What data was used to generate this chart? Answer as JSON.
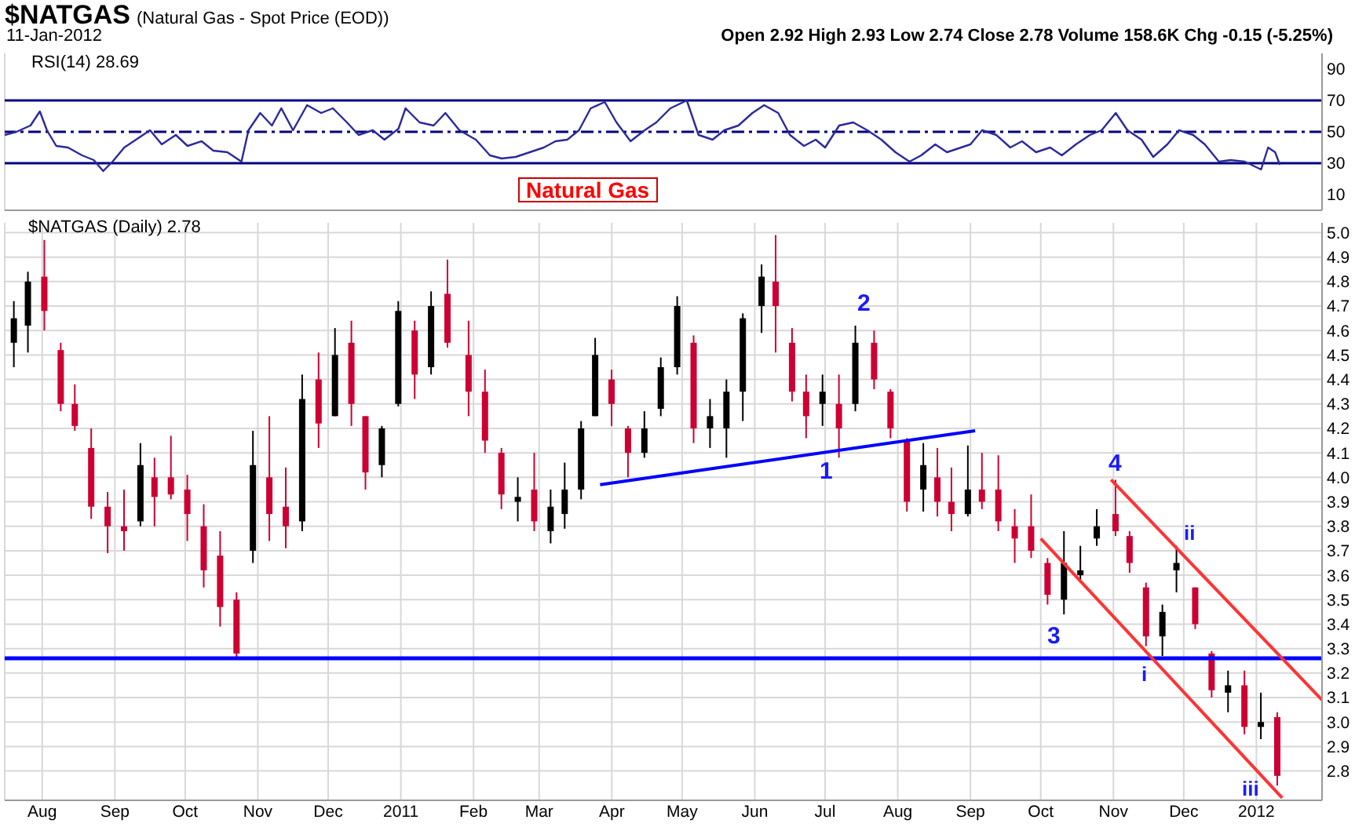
{
  "chart_data": [
    {
      "type": "line",
      "title": "$NATGAS",
      "subtitle": "(Natural Gas - Spot Price (EOD))",
      "annotations": [
        "11-Jan-2012",
        "Open 2.92 High 2.93 Low 2.74 Close 2.78 Volume 158.6K Chg -0.15 (-5.25%)",
        "RSI(14) 28.69",
        "Natural Gas"
      ],
      "x": [
        "2010-07-16",
        "2010-07-21",
        "2010-07-27",
        "2010-07-31",
        "2010-08-03",
        "2010-08-07",
        "2010-08-12",
        "2010-08-18",
        "2010-08-23",
        "2010-08-27",
        "2010-08-31",
        "2010-09-05",
        "2010-09-10",
        "2010-09-16",
        "2010-09-21",
        "2010-09-27",
        "2010-10-02",
        "2010-10-08",
        "2010-10-13",
        "2010-10-19",
        "2010-10-25",
        "2010-10-28",
        "2010-11-02",
        "2010-11-07",
        "2010-11-11",
        "2010-11-16",
        "2010-11-22",
        "2010-11-28",
        "2010-12-03",
        "2010-12-09",
        "2010-12-14",
        "2010-12-20",
        "2010-12-25",
        "2010-12-31",
        "2011-01-03",
        "2011-01-09",
        "2011-01-15",
        "2011-01-20",
        "2011-01-26",
        "2011-02-02",
        "2011-02-08",
        "2011-02-13",
        "2011-02-19",
        "2011-02-25",
        "2011-03-03",
        "2011-03-08",
        "2011-03-13",
        "2011-03-18",
        "2011-03-23",
        "2011-03-29",
        "2011-04-03",
        "2011-04-09",
        "2011-04-15",
        "2011-04-20",
        "2011-04-26",
        "2011-05-03",
        "2011-05-08",
        "2011-05-14",
        "2011-05-19",
        "2011-05-25",
        "2011-05-31",
        "2011-06-05",
        "2011-06-11",
        "2011-06-16",
        "2011-06-22",
        "2011-06-27",
        "2011-07-01",
        "2011-07-07",
        "2011-07-13",
        "2011-07-19",
        "2011-07-25",
        "2011-07-31",
        "2011-08-06",
        "2011-08-11",
        "2011-08-17",
        "2011-08-22",
        "2011-08-28",
        "2011-09-01",
        "2011-09-06",
        "2011-09-12",
        "2011-09-18",
        "2011-09-23",
        "2011-09-29",
        "2011-10-05",
        "2011-10-10",
        "2011-10-16",
        "2011-10-22",
        "2011-10-27",
        "2011-11-02",
        "2011-11-07",
        "2011-11-13",
        "2011-11-18",
        "2011-11-24",
        "2011-11-29",
        "2011-12-05",
        "2011-12-10",
        "2011-12-16",
        "2011-12-21",
        "2011-12-27",
        "2012-01-03",
        "2012-01-06",
        "2012-01-09",
        "2012-01-11"
      ],
      "series": [
        {
          "color": "#2a2a9c",
          "values": [
            48,
            50,
            54,
            63,
            51,
            41,
            40,
            35,
            32,
            25,
            31,
            40,
            45,
            51,
            42,
            48,
            41,
            44,
            38,
            37,
            31,
            51,
            62,
            54,
            65,
            51,
            67,
            62,
            65,
            56,
            48,
            51,
            45,
            52,
            65,
            56,
            54,
            62,
            51,
            45,
            35,
            33,
            34,
            37,
            40,
            44,
            45,
            51,
            65,
            69,
            56,
            44,
            51,
            56,
            65,
            70,
            48,
            45,
            51,
            54,
            62,
            67,
            62,
            48,
            41,
            45,
            40,
            54,
            56,
            51,
            45,
            37,
            31,
            35,
            42,
            37,
            40,
            42,
            51,
            48,
            40,
            44,
            37,
            40,
            35,
            42,
            48,
            51,
            62,
            51,
            45,
            34,
            42,
            51,
            48,
            42,
            31,
            32,
            31,
            26,
            40,
            37,
            29
          ]
        }
      ],
      "xlim": [
        "2010-07-16",
        "2012-01-29"
      ],
      "xticks": [
        {
          "value": "2010-08-01",
          "label": null
        },
        {
          "value": "2010-09-01",
          "label": null
        },
        {
          "value": "2010-10-01",
          "label": null
        },
        {
          "value": "2010-11-01",
          "label": null
        },
        {
          "value": "2010-12-01",
          "label": null
        },
        {
          "value": "2011-01-01",
          "label": null
        },
        {
          "value": "2011-02-01",
          "label": null
        },
        {
          "value": "2011-03-01",
          "label": null
        },
        {
          "value": "2011-04-01",
          "label": null
        },
        {
          "value": "2011-05-01",
          "label": null
        },
        {
          "value": "2011-06-01",
          "label": null
        },
        {
          "value": "2011-07-01",
          "label": null
        },
        {
          "value": "2011-08-01",
          "label": null
        },
        {
          "value": "2011-09-01",
          "label": null
        },
        {
          "value": "2011-10-01",
          "label": null
        },
        {
          "value": "2011-11-01",
          "label": null
        },
        {
          "value": "2011-12-01",
          "label": null
        },
        {
          "value": "2012-01-01",
          "label": null
        }
      ],
      "ylim": [
        0,
        100
      ],
      "yticks": [
        10,
        30,
        50,
        70,
        90
      ],
      "tick_labels": "y",
      "grid": "x",
      "ref_lines": [
        {
          "axis": "y",
          "value": 70,
          "color": "#000080"
        },
        {
          "axis": "y",
          "value": 50,
          "color": "#000080",
          "line_style": "dashed"
        },
        {
          "axis": "y",
          "value": 30,
          "color": "#000080"
        }
      ]
    },
    {
      "type": "candlestick",
      "annotations": [
        "$NATGAS (Daily) 2.78",
        "1",
        "2",
        "3",
        "4",
        "i",
        "ii",
        "iii"
      ],
      "x": [
        "2010-07-20",
        "2010-07-26",
        "2010-08-02",
        "2010-08-09",
        "2010-08-15",
        "2010-08-22",
        "2010-08-29",
        "2010-09-05",
        "2010-09-12",
        "2010-09-18",
        "2010-09-25",
        "2010-10-02",
        "2010-10-09",
        "2010-10-16",
        "2010-10-23",
        "2010-10-30",
        "2010-11-06",
        "2010-11-13",
        "2010-11-20",
        "2010-11-27",
        "2010-12-04",
        "2010-12-11",
        "2010-12-17",
        "2010-12-24",
        "2010-12-31",
        "2011-01-07",
        "2011-01-14",
        "2011-01-21",
        "2011-01-30",
        "2011-02-06",
        "2011-02-13",
        "2011-02-20",
        "2011-02-27",
        "2011-03-06",
        "2011-03-12",
        "2011-03-19",
        "2011-03-25",
        "2011-04-01",
        "2011-04-08",
        "2011-04-15",
        "2011-04-22",
        "2011-04-29",
        "2011-05-06",
        "2011-05-13",
        "2011-05-20",
        "2011-05-27",
        "2011-06-04",
        "2011-06-10",
        "2011-06-17",
        "2011-06-23",
        "2011-06-30",
        "2011-07-07",
        "2011-07-14",
        "2011-07-22",
        "2011-07-29",
        "2011-08-05",
        "2011-08-12",
        "2011-08-18",
        "2011-08-24",
        "2011-08-31",
        "2011-09-06",
        "2011-09-13",
        "2011-09-20",
        "2011-09-27",
        "2011-10-04",
        "2011-10-11",
        "2011-10-18",
        "2011-10-25",
        "2011-11-02",
        "2011-11-08",
        "2011-11-15",
        "2011-11-22",
        "2011-11-28",
        "2011-12-06",
        "2011-12-13",
        "2011-12-20",
        "2011-12-27",
        "2012-01-03",
        "2012-01-10"
      ],
      "ohlc": [
        [
          4.55,
          4.72,
          4.45,
          4.65
        ],
        [
          4.62,
          4.84,
          4.51,
          4.8
        ],
        [
          4.82,
          4.97,
          4.6,
          4.68
        ],
        [
          4.52,
          4.55,
          4.27,
          4.3
        ],
        [
          4.3,
          4.38,
          4.19,
          4.21
        ],
        [
          4.12,
          4.2,
          3.83,
          3.88
        ],
        [
          3.88,
          3.94,
          3.69,
          3.8
        ],
        [
          3.8,
          3.95,
          3.7,
          3.78
        ],
        [
          3.82,
          4.14,
          3.8,
          4.05
        ],
        [
          4.0,
          4.08,
          3.8,
          3.92
        ],
        [
          4.0,
          4.17,
          3.91,
          3.93
        ],
        [
          3.95,
          4.01,
          3.74,
          3.85
        ],
        [
          3.8,
          3.89,
          3.55,
          3.62
        ],
        [
          3.68,
          3.78,
          3.39,
          3.47
        ],
        [
          3.5,
          3.53,
          3.26,
          3.28
        ],
        [
          3.7,
          4.19,
          3.65,
          4.05
        ],
        [
          4.0,
          4.25,
          3.74,
          3.85
        ],
        [
          3.88,
          4.04,
          3.71,
          3.8
        ],
        [
          3.82,
          4.42,
          3.78,
          4.32
        ],
        [
          4.4,
          4.51,
          4.12,
          4.22
        ],
        [
          4.25,
          4.61,
          4.25,
          4.5
        ],
        [
          4.55,
          4.64,
          4.21,
          4.3
        ],
        [
          4.25,
          4.25,
          3.95,
          4.02
        ],
        [
          4.05,
          4.21,
          4.0,
          4.2
        ],
        [
          4.3,
          4.72,
          4.29,
          4.68
        ],
        [
          4.6,
          4.64,
          4.32,
          4.42
        ],
        [
          4.45,
          4.76,
          4.42,
          4.7
        ],
        [
          4.75,
          4.89,
          4.53,
          4.55
        ],
        [
          4.5,
          4.64,
          4.25,
          4.35
        ],
        [
          4.35,
          4.44,
          4.1,
          4.15
        ],
        [
          4.1,
          4.12,
          3.87,
          3.93
        ],
        [
          3.9,
          4.0,
          3.82,
          3.92
        ],
        [
          3.95,
          4.1,
          3.78,
          3.82
        ],
        [
          3.78,
          3.95,
          3.73,
          3.88
        ],
        [
          3.85,
          4.06,
          3.79,
          3.95
        ],
        [
          3.95,
          4.23,
          3.91,
          4.2
        ],
        [
          4.25,
          4.57,
          4.25,
          4.5
        ],
        [
          4.4,
          4.44,
          4.21,
          4.3
        ],
        [
          4.2,
          4.21,
          4.0,
          4.1
        ],
        [
          4.1,
          4.27,
          4.08,
          4.2
        ],
        [
          4.28,
          4.49,
          4.25,
          4.45
        ],
        [
          4.45,
          4.74,
          4.42,
          4.7
        ],
        [
          4.55,
          4.58,
          4.14,
          4.2
        ],
        [
          4.2,
          4.32,
          4.12,
          4.25
        ],
        [
          4.2,
          4.4,
          4.08,
          4.35
        ],
        [
          4.35,
          4.67,
          4.23,
          4.65
        ],
        [
          4.7,
          4.87,
          4.59,
          4.82
        ],
        [
          4.8,
          4.99,
          4.51,
          4.7
        ],
        [
          4.55,
          4.61,
          4.31,
          4.35
        ],
        [
          4.35,
          4.42,
          4.16,
          4.25
        ],
        [
          4.3,
          4.42,
          4.21,
          4.35
        ],
        [
          4.3,
          4.42,
          4.08,
          4.2
        ],
        [
          4.3,
          4.62,
          4.27,
          4.55
        ],
        [
          4.55,
          4.6,
          4.36,
          4.4
        ],
        [
          4.35,
          4.36,
          4.16,
          4.2
        ],
        [
          4.15,
          4.16,
          3.86,
          3.9
        ],
        [
          3.95,
          4.14,
          3.86,
          4.05
        ],
        [
          4.0,
          4.12,
          3.84,
          3.9
        ],
        [
          3.9,
          4.04,
          3.78,
          3.85
        ],
        [
          3.85,
          4.13,
          3.84,
          3.95
        ],
        [
          3.95,
          4.1,
          3.87,
          3.9
        ],
        [
          3.95,
          4.09,
          3.78,
          3.82
        ],
        [
          3.8,
          3.87,
          3.65,
          3.75
        ],
        [
          3.8,
          3.93,
          3.67,
          3.7
        ],
        [
          3.65,
          3.67,
          3.48,
          3.52
        ],
        [
          3.5,
          3.78,
          3.44,
          3.65
        ],
        [
          3.6,
          3.72,
          3.57,
          3.62
        ],
        [
          3.75,
          3.87,
          3.72,
          3.8
        ],
        [
          3.85,
          3.99,
          3.76,
          3.78
        ],
        [
          3.76,
          3.78,
          3.61,
          3.65
        ],
        [
          3.55,
          3.57,
          3.31,
          3.35
        ],
        [
          3.35,
          3.48,
          3.27,
          3.45
        ],
        [
          3.62,
          3.72,
          3.53,
          3.65
        ],
        [
          3.55,
          3.55,
          3.38,
          3.4
        ],
        [
          3.28,
          3.29,
          3.1,
          3.13
        ],
        [
          3.12,
          3.21,
          3.04,
          3.15
        ],
        [
          3.15,
          3.21,
          2.95,
          2.98
        ],
        [
          2.98,
          3.12,
          2.93,
          3.0
        ],
        [
          3.02,
          3.04,
          2.74,
          2.78
        ]
      ],
      "colors": [
        "#000000",
        "#000000",
        "#cc0033",
        "#cc0033",
        "#cc0033",
        "#cc0033",
        "#cc0033",
        "#cc0033",
        "#000000",
        "#cc0033",
        "#cc0033",
        "#cc0033",
        "#cc0033",
        "#cc0033",
        "#cc0033",
        "#000000",
        "#cc0033",
        "#cc0033",
        "#000000",
        "#cc0033",
        "#000000",
        "#cc0033",
        "#cc0033",
        "#000000",
        "#000000",
        "#cc0033",
        "#000000",
        "#cc0033",
        "#cc0033",
        "#cc0033",
        "#cc0033",
        "#000000",
        "#cc0033",
        "#000000",
        "#000000",
        "#000000",
        "#000000",
        "#cc0033",
        "#cc0033",
        "#000000",
        "#000000",
        "#000000",
        "#cc0033",
        "#000000",
        "#000000",
        "#000000",
        "#000000",
        "#cc0033",
        "#cc0033",
        "#cc0033",
        "#000000",
        "#cc0033",
        "#000000",
        "#cc0033",
        "#cc0033",
        "#cc0033",
        "#000000",
        "#cc0033",
        "#cc0033",
        "#000000",
        "#cc0033",
        "#cc0033",
        "#cc0033",
        "#cc0033",
        "#cc0033",
        "#000000",
        "#000000",
        "#000000",
        "#cc0033",
        "#cc0033",
        "#cc0033",
        "#000000",
        "#000000",
        "#cc0033",
        "#cc0033",
        "#000000",
        "#cc0033",
        "#000000",
        "#cc0033"
      ],
      "series": [
        {
          "type": "line",
          "color": "#0000ff",
          "x": [
            "2011-03-27",
            "2011-09-03"
          ],
          "values": [
            3.97,
            4.19
          ]
        },
        {
          "type": "line",
          "color": "#ff3333",
          "x": [
            "2011-10-31",
            "2012-01-29"
          ],
          "values": [
            3.99,
            3.09
          ]
        },
        {
          "type": "line",
          "color": "#ff3333",
          "x": [
            "2011-10-01",
            "2012-01-12"
          ],
          "values": [
            3.75,
            2.69
          ]
        }
      ],
      "xlim": [
        "2010-07-16",
        "2012-01-29"
      ],
      "xticks": [
        {
          "value": "2010-08-01",
          "label": "Aug"
        },
        {
          "value": "2010-09-01",
          "label": "Sep"
        },
        {
          "value": "2010-10-01",
          "label": "Oct"
        },
        {
          "value": "2010-11-01",
          "label": "Nov"
        },
        {
          "value": "2010-12-01",
          "label": "Dec"
        },
        {
          "value": "2011-01-01",
          "label": "2011"
        },
        {
          "value": "2011-02-01",
          "label": "Feb"
        },
        {
          "value": "2011-03-01",
          "label": "Mar"
        },
        {
          "value": "2011-04-01",
          "label": "Apr"
        },
        {
          "value": "2011-05-01",
          "label": "May"
        },
        {
          "value": "2011-06-01",
          "label": "Jun"
        },
        {
          "value": "2011-07-01",
          "label": "Jul"
        },
        {
          "value": "2011-08-01",
          "label": "Aug"
        },
        {
          "value": "2011-09-01",
          "label": "Sep"
        },
        {
          "value": "2011-10-01",
          "label": "Oct"
        },
        {
          "value": "2011-11-01",
          "label": "Nov"
        },
        {
          "value": "2011-12-01",
          "label": "Dec"
        },
        {
          "value": "2012-01-01",
          "label": "2012"
        }
      ],
      "ylim": [
        2.68,
        5.04
      ],
      "yticks": [
        2.8,
        2.9,
        {
          "value": 3,
          "label": "3.0"
        },
        3.1,
        3.2,
        3.3,
        3.4,
        3.5,
        3.6,
        3.7,
        3.8,
        3.9,
        {
          "value": 4,
          "label": "4.0"
        },
        4.1,
        4.2,
        4.3,
        4.4,
        4.5,
        4.6,
        4.7,
        4.8,
        4.9,
        {
          "value": 5,
          "label": "5.0"
        }
      ],
      "grid": true,
      "ref_lines": [
        {
          "axis": "y",
          "value": 3.26,
          "color": "#0000ff"
        }
      ]
    }
  ]
}
